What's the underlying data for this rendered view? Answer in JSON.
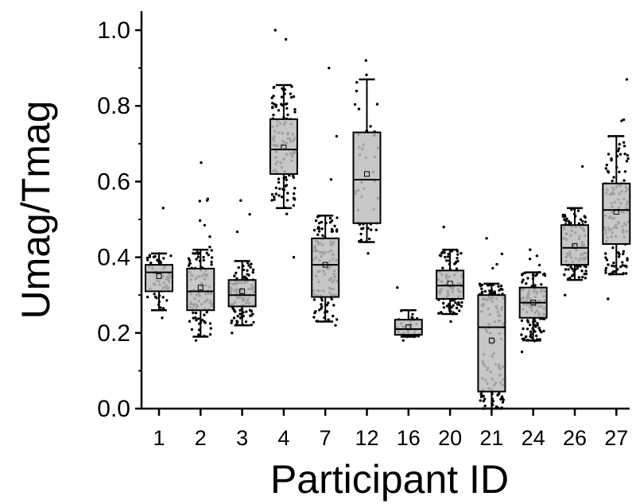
{
  "chart_data": {
    "type": "box",
    "title": "",
    "xlabel": "Participant ID",
    "ylabel": "Umag/Tmag",
    "ylim": [
      0,
      1.05
    ],
    "yticks": [
      "0.0",
      "0.2",
      "0.4",
      "0.6",
      "0.8",
      "1.0"
    ],
    "grid": false,
    "box_color": "#bdbdbd",
    "point_color": "#000000",
    "categories": [
      "1",
      "2",
      "3",
      "4",
      "7",
      "12",
      "16",
      "20",
      "21",
      "24",
      "26",
      "27"
    ],
    "boxes": [
      {
        "category": "1",
        "whisker_low": 0.26,
        "q1": 0.31,
        "median": 0.36,
        "q3": 0.38,
        "whisker_high": 0.41,
        "mean": 0.35,
        "point_min": 0.24,
        "point_max": 0.53,
        "n": 60
      },
      {
        "category": "2",
        "whisker_low": 0.19,
        "q1": 0.26,
        "median": 0.31,
        "q3": 0.37,
        "whisker_high": 0.42,
        "mean": 0.32,
        "point_min": 0.18,
        "point_max": 0.65,
        "n": 110
      },
      {
        "category": "3",
        "whisker_low": 0.22,
        "q1": 0.27,
        "median": 0.3,
        "q3": 0.34,
        "whisker_high": 0.39,
        "mean": 0.31,
        "point_min": 0.2,
        "point_max": 0.55,
        "n": 110
      },
      {
        "category": "4",
        "whisker_low": 0.53,
        "q1": 0.62,
        "median": 0.685,
        "q3": 0.765,
        "whisker_high": 0.855,
        "mean": 0.69,
        "point_min": 0.4,
        "point_max": 1.0,
        "n": 120
      },
      {
        "category": "7",
        "whisker_low": 0.23,
        "q1": 0.295,
        "median": 0.38,
        "q3": 0.45,
        "whisker_high": 0.51,
        "mean": 0.38,
        "point_min": 0.22,
        "point_max": 0.9,
        "n": 120
      },
      {
        "category": "12",
        "whisker_low": 0.44,
        "q1": 0.49,
        "median": 0.605,
        "q3": 0.73,
        "whisker_high": 0.87,
        "mean": 0.62,
        "point_min": 0.41,
        "point_max": 0.92,
        "n": 50
      },
      {
        "category": "16",
        "whisker_low": 0.19,
        "q1": 0.195,
        "median": 0.21,
        "q3": 0.235,
        "whisker_high": 0.26,
        "mean": 0.215,
        "point_min": 0.18,
        "point_max": 0.32,
        "n": 40
      },
      {
        "category": "20",
        "whisker_low": 0.25,
        "q1": 0.29,
        "median": 0.325,
        "q3": 0.365,
        "whisker_high": 0.42,
        "mean": 0.33,
        "point_min": 0.23,
        "point_max": 0.48,
        "n": 100
      },
      {
        "category": "21",
        "whisker_low": 0.0,
        "q1": 0.045,
        "median": 0.215,
        "q3": 0.3,
        "whisker_high": 0.33,
        "mean": 0.18,
        "point_min": 0.0,
        "point_max": 0.45,
        "n": 130
      },
      {
        "category": "24",
        "whisker_low": 0.18,
        "q1": 0.24,
        "median": 0.28,
        "q3": 0.32,
        "whisker_high": 0.36,
        "mean": 0.28,
        "point_min": 0.15,
        "point_max": 0.42,
        "n": 120
      },
      {
        "category": "26",
        "whisker_low": 0.34,
        "q1": 0.38,
        "median": 0.425,
        "q3": 0.485,
        "whisker_high": 0.53,
        "mean": 0.43,
        "point_min": 0.3,
        "point_max": 0.64,
        "n": 100
      },
      {
        "category": "27",
        "whisker_low": 0.355,
        "q1": 0.435,
        "median": 0.525,
        "q3": 0.595,
        "whisker_high": 0.72,
        "mean": 0.52,
        "point_min": 0.29,
        "point_max": 0.87,
        "n": 130
      }
    ]
  }
}
